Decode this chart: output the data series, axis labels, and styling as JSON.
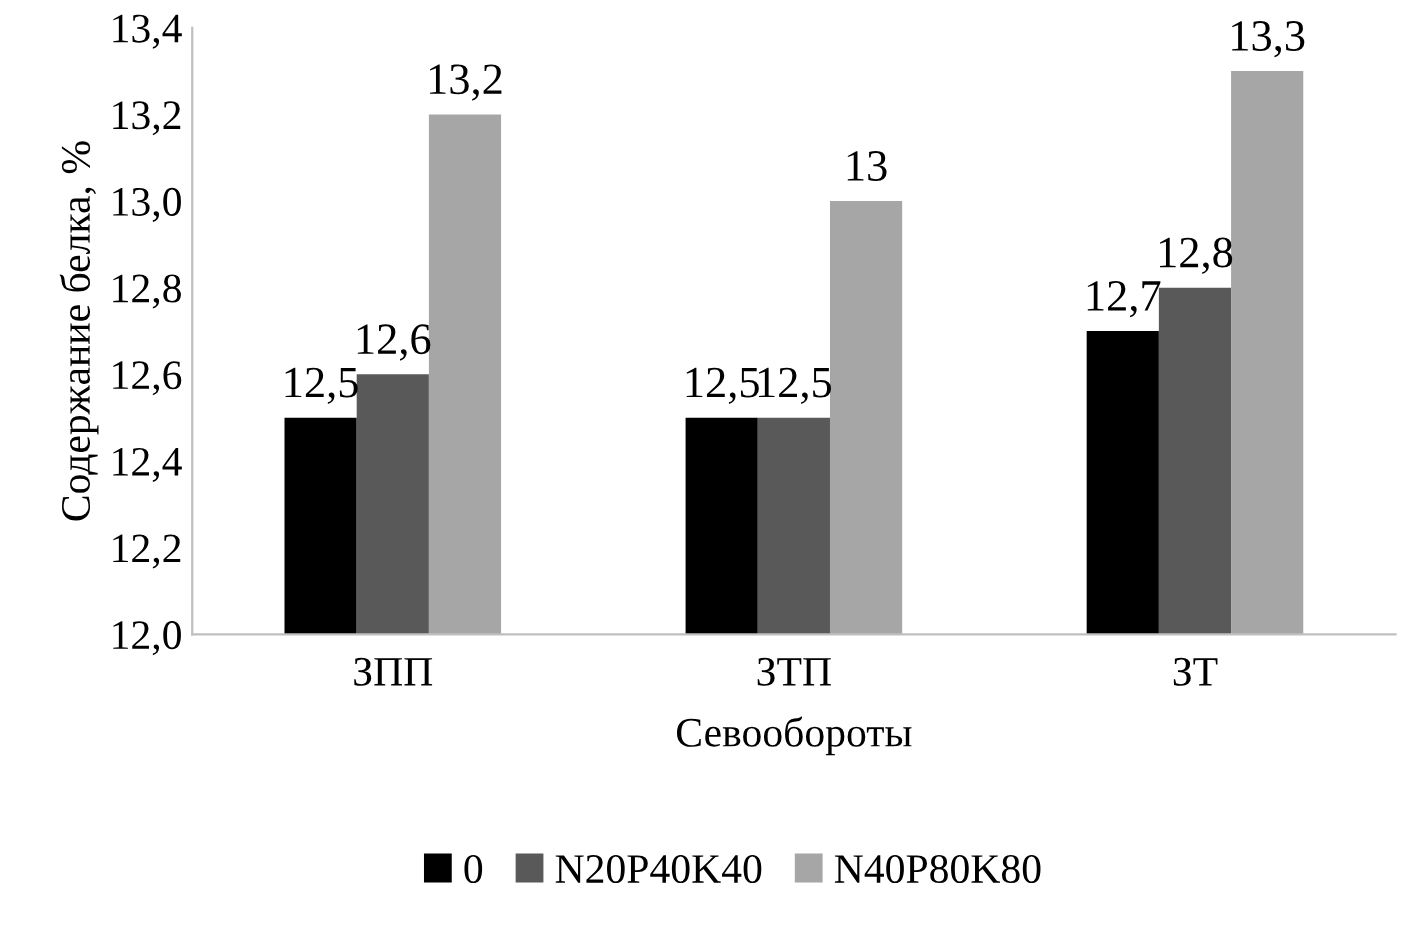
{
  "chart_data": {
    "type": "bar",
    "xlabel": "Севообороты",
    "ylabel": "Содержание белка, %",
    "categories": [
      "ЗПП",
      "ЗТП",
      "ЗТ"
    ],
    "series": [
      {
        "name": "0",
        "color": "#000000",
        "values": [
          12.5,
          12.5,
          12.7
        ],
        "value_labels": [
          "12,5",
          "12,5",
          "12,7"
        ]
      },
      {
        "name": "N20P40K40",
        "color": "#595959",
        "values": [
          12.6,
          12.5,
          12.8
        ],
        "value_labels": [
          "12,6",
          "12,5",
          "12,8"
        ]
      },
      {
        "name": "N40P80K80",
        "color": "#a6a6a6",
        "values": [
          13.2,
          13.0,
          13.3
        ],
        "value_labels": [
          "13,2",
          "13",
          "13,3"
        ]
      }
    ],
    "ylim": [
      12.0,
      13.4
    ],
    "yticks": [
      {
        "value": 12.0,
        "label": "12,0"
      },
      {
        "value": 12.2,
        "label": "12,2"
      },
      {
        "value": 12.4,
        "label": "12,4"
      },
      {
        "value": 12.6,
        "label": "12,6"
      },
      {
        "value": 12.8,
        "label": "12,8"
      },
      {
        "value": 13.0,
        "label": "13,0"
      },
      {
        "value": 13.2,
        "label": "13,2"
      },
      {
        "value": 13.4,
        "label": "13,4"
      }
    ],
    "grid": false,
    "legend": "bottom"
  }
}
